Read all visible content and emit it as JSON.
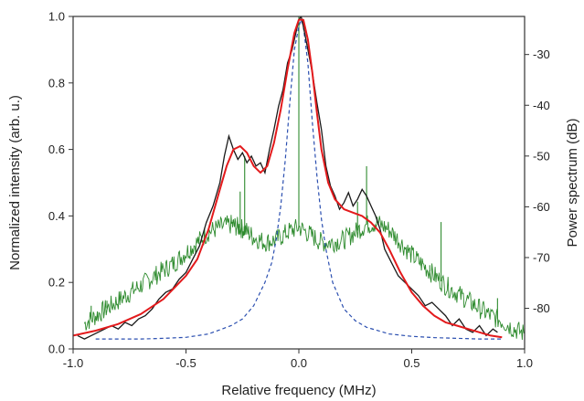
{
  "chart_data": {
    "type": "line",
    "xlabel": "Relative frequency (MHz)",
    "ylabel_left": "Normalized intensity (arb. u.)",
    "ylabel_right": "Power spectrum (dB)",
    "xlim": [
      -1.0,
      1.0
    ],
    "ylim_left": [
      0.0,
      1.0
    ],
    "ylim_right": [
      -88,
      -22.5
    ],
    "x_ticks": [
      "-1.0",
      "-0.5",
      "0.0",
      "0.5",
      "1.0"
    ],
    "y_ticks_left": [
      "0.0",
      "0.2",
      "0.4",
      "0.6",
      "0.8",
      "1.0"
    ],
    "y_ticks_right": [
      "-80",
      "-70",
      "-60",
      "-50",
      "-40",
      "-30"
    ],
    "grid": false,
    "colors": {
      "measured": "#1a1a1a",
      "fit": "#e31a1c",
      "lorentzian": "#2b4fb0",
      "power_spectrum": "#2e8b2e"
    },
    "series": [
      {
        "key": "measured",
        "axis": "left",
        "x": [
          -0.98,
          -0.95,
          -0.92,
          -0.89,
          -0.86,
          -0.83,
          -0.8,
          -0.77,
          -0.74,
          -0.71,
          -0.68,
          -0.65,
          -0.62,
          -0.59,
          -0.56,
          -0.53,
          -0.5,
          -0.47,
          -0.44,
          -0.41,
          -0.38,
          -0.35,
          -0.33,
          -0.31,
          -0.29,
          -0.27,
          -0.25,
          -0.23,
          -0.21,
          -0.19,
          -0.17,
          -0.15,
          -0.13,
          -0.11,
          -0.09,
          -0.07,
          -0.05,
          -0.03,
          -0.01,
          0.0,
          0.01,
          0.02,
          0.04,
          0.06,
          0.08,
          0.1,
          0.12,
          0.14,
          0.16,
          0.18,
          0.2,
          0.22,
          0.24,
          0.26,
          0.28,
          0.3,
          0.32,
          0.34,
          0.36,
          0.38,
          0.41,
          0.44,
          0.47,
          0.5,
          0.53,
          0.56,
          0.59,
          0.62,
          0.65,
          0.68,
          0.71,
          0.74,
          0.77,
          0.8,
          0.83,
          0.86,
          0.88
        ],
        "y": [
          0.04,
          0.03,
          0.04,
          0.05,
          0.06,
          0.07,
          0.06,
          0.08,
          0.07,
          0.09,
          0.1,
          0.12,
          0.15,
          0.17,
          0.18,
          0.21,
          0.23,
          0.27,
          0.31,
          0.38,
          0.43,
          0.5,
          0.58,
          0.64,
          0.6,
          0.57,
          0.59,
          0.56,
          0.58,
          0.55,
          0.56,
          0.53,
          0.6,
          0.66,
          0.73,
          0.78,
          0.86,
          0.9,
          0.96,
          0.99,
          1.0,
          0.97,
          0.9,
          0.83,
          0.74,
          0.66,
          0.55,
          0.49,
          0.46,
          0.42,
          0.44,
          0.47,
          0.43,
          0.45,
          0.48,
          0.46,
          0.43,
          0.4,
          0.36,
          0.3,
          0.26,
          0.22,
          0.2,
          0.18,
          0.16,
          0.13,
          0.14,
          0.12,
          0.1,
          0.07,
          0.09,
          0.06,
          0.05,
          0.07,
          0.04,
          0.06,
          0.05
        ]
      },
      {
        "key": "fit",
        "axis": "left",
        "x": [
          -1.0,
          -0.9,
          -0.8,
          -0.7,
          -0.6,
          -0.5,
          -0.45,
          -0.4,
          -0.35,
          -0.32,
          -0.29,
          -0.26,
          -0.23,
          -0.2,
          -0.17,
          -0.14,
          -0.11,
          -0.08,
          -0.05,
          -0.02,
          0.0,
          0.02,
          0.04,
          0.06,
          0.08,
          0.1,
          0.13,
          0.16,
          0.2,
          0.24,
          0.28,
          0.32,
          0.36,
          0.4,
          0.45,
          0.5,
          0.55,
          0.6,
          0.65,
          0.7,
          0.75,
          0.8,
          0.85,
          0.9
        ],
        "y": [
          0.04,
          0.055,
          0.075,
          0.105,
          0.15,
          0.22,
          0.27,
          0.36,
          0.48,
          0.55,
          0.6,
          0.61,
          0.59,
          0.55,
          0.53,
          0.55,
          0.62,
          0.72,
          0.84,
          0.95,
          0.99,
          0.99,
          0.93,
          0.83,
          0.71,
          0.6,
          0.5,
          0.45,
          0.42,
          0.41,
          0.4,
          0.38,
          0.35,
          0.3,
          0.23,
          0.17,
          0.13,
          0.1,
          0.08,
          0.07,
          0.06,
          0.05,
          0.04,
          0.035
        ]
      },
      {
        "key": "lorentzian",
        "axis": "left",
        "x": [
          -0.9,
          -0.8,
          -0.7,
          -0.6,
          -0.5,
          -0.4,
          -0.3,
          -0.25,
          -0.2,
          -0.15,
          -0.12,
          -0.1,
          -0.08,
          -0.06,
          -0.04,
          -0.02,
          0.0,
          0.01,
          0.02,
          0.04,
          0.06,
          0.08,
          0.1,
          0.12,
          0.15,
          0.2,
          0.25,
          0.3,
          0.4,
          0.5,
          0.6,
          0.7,
          0.8,
          0.9
        ],
        "y": [
          0.03,
          0.03,
          0.03,
          0.032,
          0.035,
          0.045,
          0.07,
          0.09,
          0.13,
          0.2,
          0.26,
          0.33,
          0.43,
          0.57,
          0.74,
          0.9,
          0.97,
          0.99,
          0.97,
          0.86,
          0.68,
          0.52,
          0.39,
          0.3,
          0.2,
          0.12,
          0.085,
          0.065,
          0.045,
          0.038,
          0.034,
          0.032,
          0.03,
          0.03
        ]
      },
      {
        "key": "power_spectrum",
        "axis": "right",
        "x": [
          -0.95,
          -0.9,
          -0.85,
          -0.8,
          -0.75,
          -0.7,
          -0.65,
          -0.6,
          -0.55,
          -0.5,
          -0.45,
          -0.4,
          -0.35,
          -0.3,
          -0.27,
          -0.24,
          -0.2,
          -0.15,
          -0.1,
          -0.05,
          0.0,
          0.05,
          0.1,
          0.15,
          0.2,
          0.25,
          0.3,
          0.35,
          0.4,
          0.45,
          0.5,
          0.55,
          0.6,
          0.65,
          0.7,
          0.75,
          0.8,
          0.85,
          0.9,
          0.95,
          1.0
        ],
        "y": [
          -83,
          -81.5,
          -80,
          -78.5,
          -77,
          -75.5,
          -74,
          -72.5,
          -71,
          -69,
          -67,
          -65,
          -64,
          -63.5,
          -64,
          -64.5,
          -66,
          -67,
          -66.5,
          -65,
          -64,
          -65.5,
          -67,
          -67,
          -66.5,
          -65,
          -63.5,
          -63.2,
          -64.5,
          -67,
          -69.5,
          -71.5,
          -73.5,
          -75.5,
          -77,
          -78.5,
          -80,
          -81.5,
          -82.5,
          -84,
          -85
        ],
        "spikes": [
          {
            "x": -0.92,
            "y": -79.5
          },
          {
            "x": -0.85,
            "y": -78.5
          },
          {
            "x": -0.26,
            "y": -57
          },
          {
            "x": -0.24,
            "y": -50
          },
          {
            "x": 0.0,
            "y": -22.5
          },
          {
            "x": 0.26,
            "y": -59
          },
          {
            "x": 0.3,
            "y": -52
          },
          {
            "x": 0.58,
            "y": -71.5
          },
          {
            "x": 0.63,
            "y": -63
          },
          {
            "x": 0.88,
            "y": -78
          }
        ]
      }
    ]
  }
}
